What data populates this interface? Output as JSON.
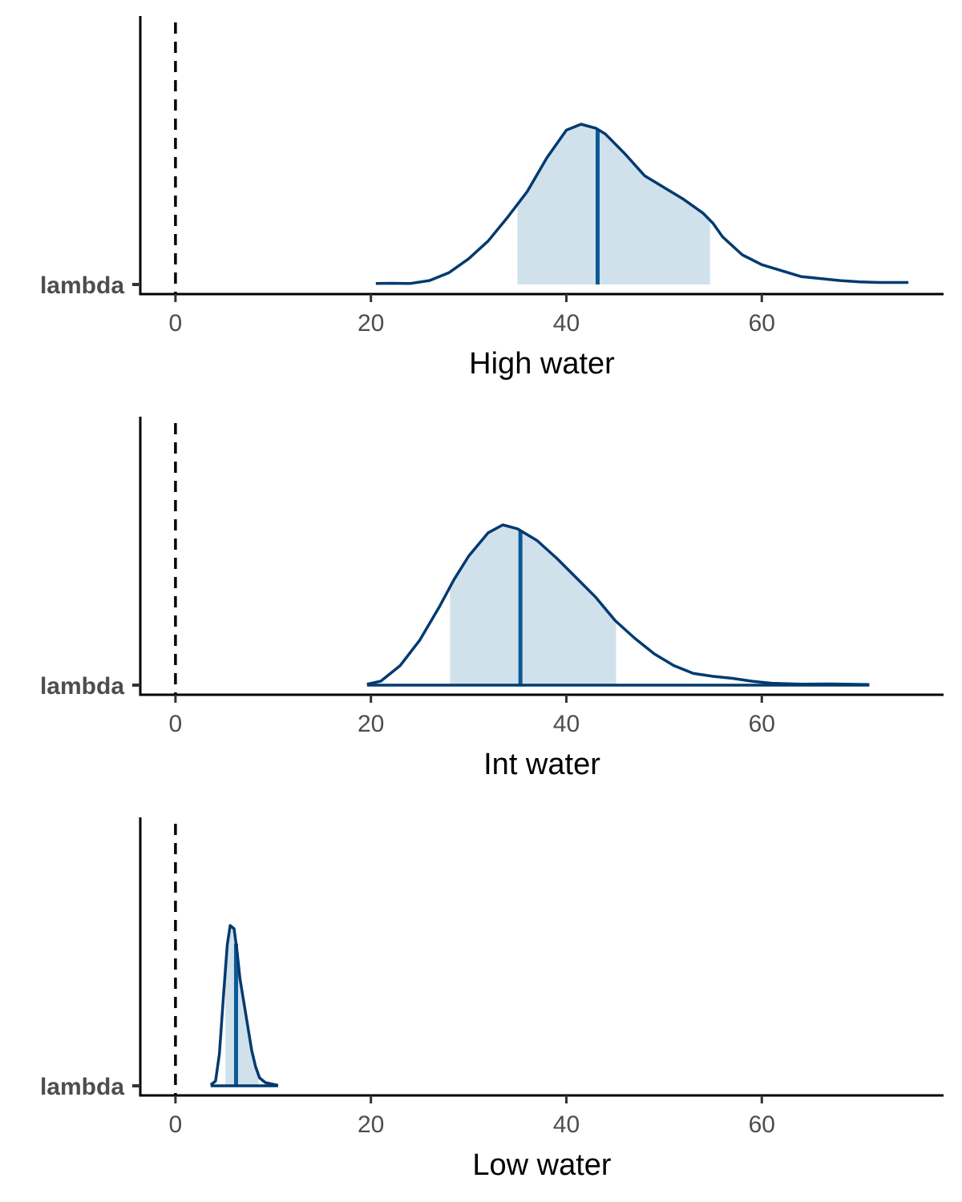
{
  "colors": {
    "density_line": "#003A70",
    "interval_fill": "#D1E1EC",
    "median_line": "#0B5A97",
    "axis": "#000000",
    "tick_text": "#4D4D4D"
  },
  "chart_data": [
    {
      "type": "area",
      "xlabel": "High water",
      "y_category": "lambda",
      "xlim": [
        -3.6,
        78.6
      ],
      "x_ticks": [
        0,
        20,
        40,
        60
      ],
      "x_tick_labels": [
        "0",
        "20",
        "40",
        "60"
      ],
      "reference_line_x": 0,
      "reference_line_style": "dashed",
      "interval": [
        35,
        54.7
      ],
      "median": 43.2,
      "baseline_drawn": false,
      "density": [
        [
          20.5,
          0.005
        ],
        [
          22,
          0.006
        ],
        [
          24,
          0.005
        ],
        [
          26,
          0.02
        ],
        [
          28,
          0.06
        ],
        [
          30,
          0.13
        ],
        [
          32,
          0.22
        ],
        [
          34,
          0.34
        ],
        [
          36,
          0.47
        ],
        [
          38,
          0.64
        ],
        [
          40,
          0.78
        ],
        [
          41.5,
          0.81
        ],
        [
          43,
          0.79
        ],
        [
          44,
          0.76
        ],
        [
          46,
          0.66
        ],
        [
          48,
          0.55
        ],
        [
          50,
          0.49
        ],
        [
          52,
          0.43
        ],
        [
          54,
          0.36
        ],
        [
          55,
          0.31
        ],
        [
          56,
          0.24
        ],
        [
          58,
          0.15
        ],
        [
          60,
          0.1
        ],
        [
          62,
          0.07
        ],
        [
          64,
          0.04
        ],
        [
          66,
          0.03
        ],
        [
          68,
          0.02
        ],
        [
          70,
          0.013
        ],
        [
          72,
          0.01
        ],
        [
          75,
          0.01
        ]
      ]
    },
    {
      "type": "area",
      "xlabel": "Int water",
      "y_category": "lambda",
      "xlim": [
        -3.6,
        78.6
      ],
      "x_ticks": [
        0,
        20,
        40,
        60
      ],
      "x_tick_labels": [
        "0",
        "20",
        "40",
        "60"
      ],
      "reference_line_x": 0,
      "reference_line_style": "dashed",
      "interval": [
        28.1,
        45.1
      ],
      "median": 35.3,
      "baseline_drawn": true,
      "density": [
        [
          19.6,
          0.005
        ],
        [
          21,
          0.02
        ],
        [
          23,
          0.1
        ],
        [
          25,
          0.23
        ],
        [
          27,
          0.4
        ],
        [
          28.5,
          0.54
        ],
        [
          30,
          0.66
        ],
        [
          32,
          0.78
        ],
        [
          33.5,
          0.82
        ],
        [
          35,
          0.8
        ],
        [
          37,
          0.74
        ],
        [
          39,
          0.65
        ],
        [
          41,
          0.55
        ],
        [
          43,
          0.45
        ],
        [
          45,
          0.33
        ],
        [
          47,
          0.24
        ],
        [
          49,
          0.16
        ],
        [
          51,
          0.1
        ],
        [
          53,
          0.06
        ],
        [
          55,
          0.045
        ],
        [
          57,
          0.035
        ],
        [
          59,
          0.02
        ],
        [
          61,
          0.01
        ],
        [
          64,
          0.005
        ],
        [
          67,
          0.006
        ],
        [
          71,
          0.003
        ]
      ]
    },
    {
      "type": "area",
      "xlabel": "Low water",
      "y_category": "lambda",
      "xlim": [
        -3.6,
        78.6
      ],
      "x_ticks": [
        0,
        20,
        40,
        60
      ],
      "x_tick_labels": [
        "0",
        "20",
        "40",
        "60"
      ],
      "reference_line_x": 0,
      "reference_line_style": "dashed",
      "interval": [
        5.1,
        8.5
      ],
      "median": 6.2,
      "baseline_drawn": true,
      "density": [
        [
          3.6,
          0.005
        ],
        [
          4.1,
          0.03
        ],
        [
          4.5,
          0.2
        ],
        [
          4.9,
          0.55
        ],
        [
          5.3,
          0.88
        ],
        [
          5.6,
          1.0
        ],
        [
          6.0,
          0.98
        ],
        [
          6.3,
          0.84
        ],
        [
          6.6,
          0.67
        ],
        [
          7.0,
          0.52
        ],
        [
          7.4,
          0.37
        ],
        [
          7.8,
          0.22
        ],
        [
          8.2,
          0.12
        ],
        [
          8.6,
          0.05
        ],
        [
          9.2,
          0.02
        ],
        [
          10.5,
          0.003
        ]
      ]
    }
  ]
}
